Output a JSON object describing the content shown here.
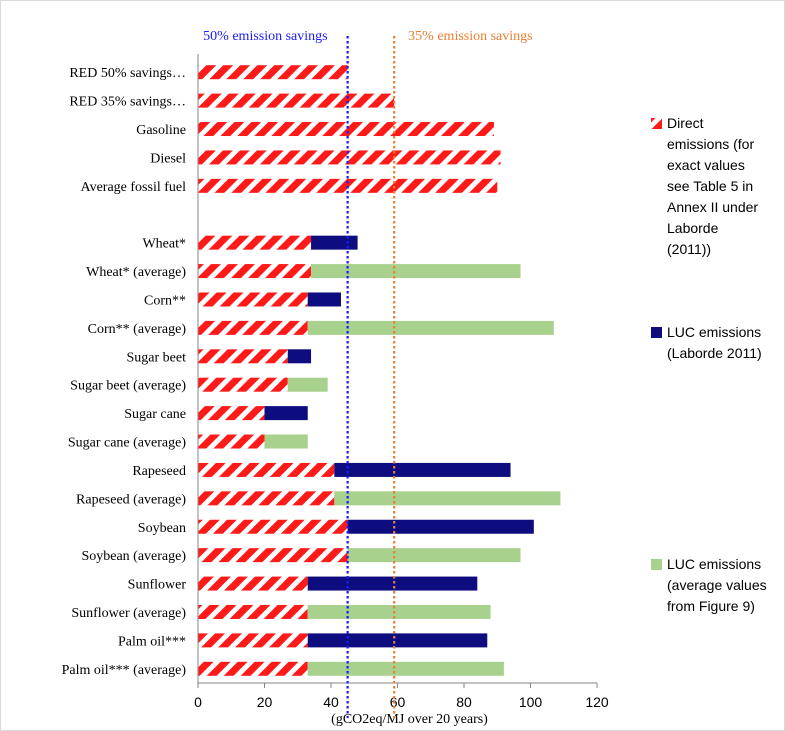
{
  "colors": {
    "direct": "#ff1a1a",
    "luc": "#0d0d80",
    "luc_avg": "#a9d18e",
    "ref50": "#1a1aff",
    "ref35": "#ed7d31"
  },
  "chart_data": {
    "type": "bar",
    "orientation": "horizontal",
    "stacked": true,
    "xlabel": "(gCO2eq/MJ over 20 years)",
    "xlim": [
      0,
      120
    ],
    "xticks": [
      0,
      20,
      40,
      60,
      80,
      100,
      120
    ],
    "categories": [
      "RED 50% savings…",
      "RED 35% savings…",
      "Gasoline",
      "Diesel",
      "Average fossil fuel",
      "",
      "Wheat*",
      "Wheat* (average)",
      "Corn**",
      "Corn** (average)",
      "Sugar beet",
      "Sugar beet (average)",
      "Sugar cane",
      "Sugar cane (average)",
      "Rapeseed",
      "Rapeseed (average)",
      "Soybean",
      "Soybean (average)",
      "Sunflower",
      "Sunflower (average)",
      "Palm oil***",
      "Palm oil*** (average)"
    ],
    "series": [
      {
        "name": "Direct emissions (for exact values see Table 5 in Annex II under Laborde (2011))",
        "legend_lines": [
          "Direct",
          "emissions (for",
          "exact values",
          "see Table 5 in",
          "Annex II under",
          "Laborde",
          "(2011))"
        ],
        "pattern": "red-diagonal-hatch",
        "values": [
          45,
          59,
          89,
          91,
          90,
          null,
          34,
          34,
          33,
          33,
          27,
          27,
          20,
          20,
          41,
          41,
          45,
          45,
          33,
          33,
          33,
          33
        ]
      },
      {
        "name": "LUC emissions (Laborde 2011)",
        "legend_lines": [
          "LUC emissions",
          "(Laborde 2011)"
        ],
        "pattern": "solid-navy",
        "values": [
          0,
          0,
          0,
          0,
          0,
          null,
          14,
          0,
          10,
          0,
          7,
          0,
          13,
          0,
          53,
          0,
          56,
          0,
          51,
          0,
          54,
          0
        ]
      },
      {
        "name": "LUC emissions (average values from Figure 9)",
        "legend_lines": [
          "LUC emissions",
          "(average values",
          "from Figure 9)"
        ],
        "pattern": "solid-light-green",
        "values": [
          0,
          0,
          0,
          0,
          0,
          null,
          0,
          63,
          0,
          74,
          0,
          12,
          0,
          13,
          0,
          68,
          0,
          52,
          0,
          55,
          0,
          59
        ]
      }
    ],
    "reference_lines": [
      {
        "label": "50% emission savings",
        "value": 45,
        "color_key": "ref50"
      },
      {
        "label": "35% emission savings",
        "value": 59,
        "color_key": "ref35"
      }
    ],
    "grid": false,
    "legend_position": "right"
  }
}
